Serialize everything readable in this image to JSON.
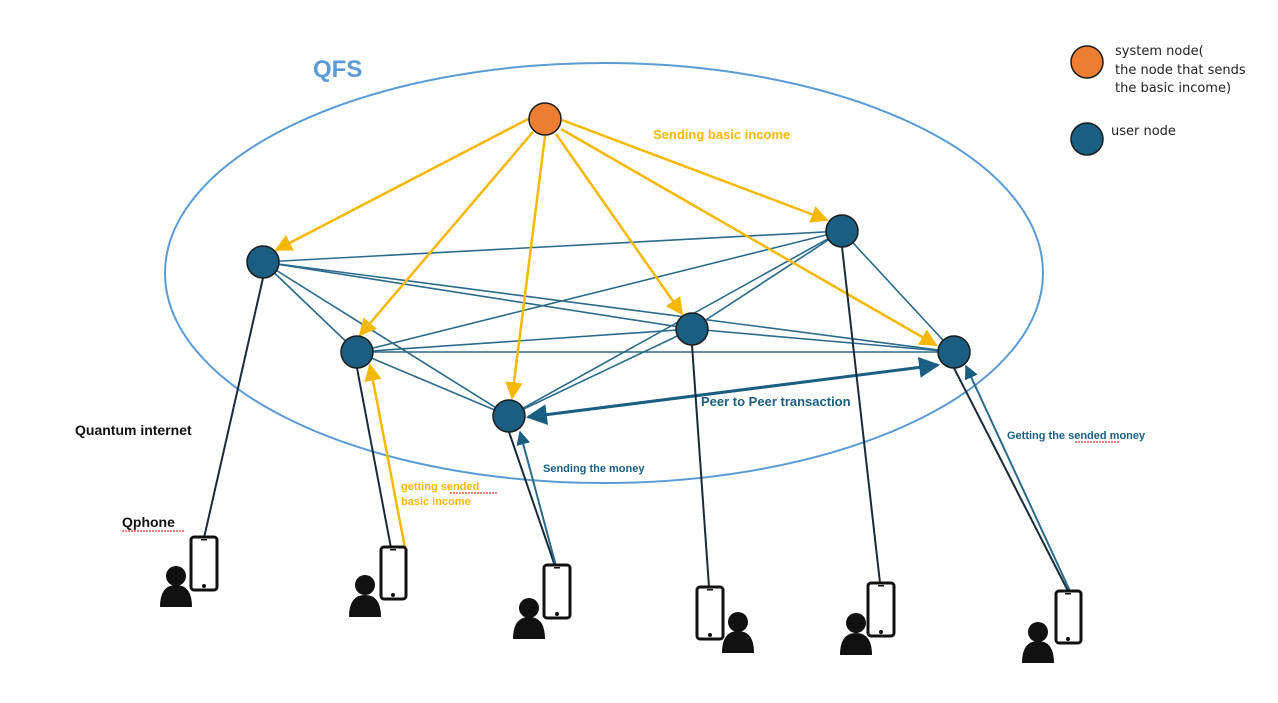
{
  "title": "QFS",
  "colors": {
    "ellipse": "#5b9bd5",
    "system_node": "#ed7d31",
    "user_node": "#1a5e82",
    "income_arrow": "#f5b800",
    "link": "#2a6a8a",
    "dark_link": "#1a2a3a",
    "text_blue": "#1a5e82",
    "text_orange": "#f5b800"
  },
  "labels": {
    "sending_basic_income": "Sending basic income",
    "peer_to_peer": "Peer to Peer transaction",
    "quantum_internet": "Quantum internet",
    "qphone": "Qphone",
    "getting_basic_income_1": "getting sended",
    "getting_basic_income_2": "basic income",
    "sending_money": "Sending the money",
    "getting_money": "Getting the sended money"
  },
  "legend": {
    "system_node_1": "system node(",
    "system_node_2": "the node that sends",
    "system_node_3": "the basic income)",
    "user_node": "user node"
  }
}
